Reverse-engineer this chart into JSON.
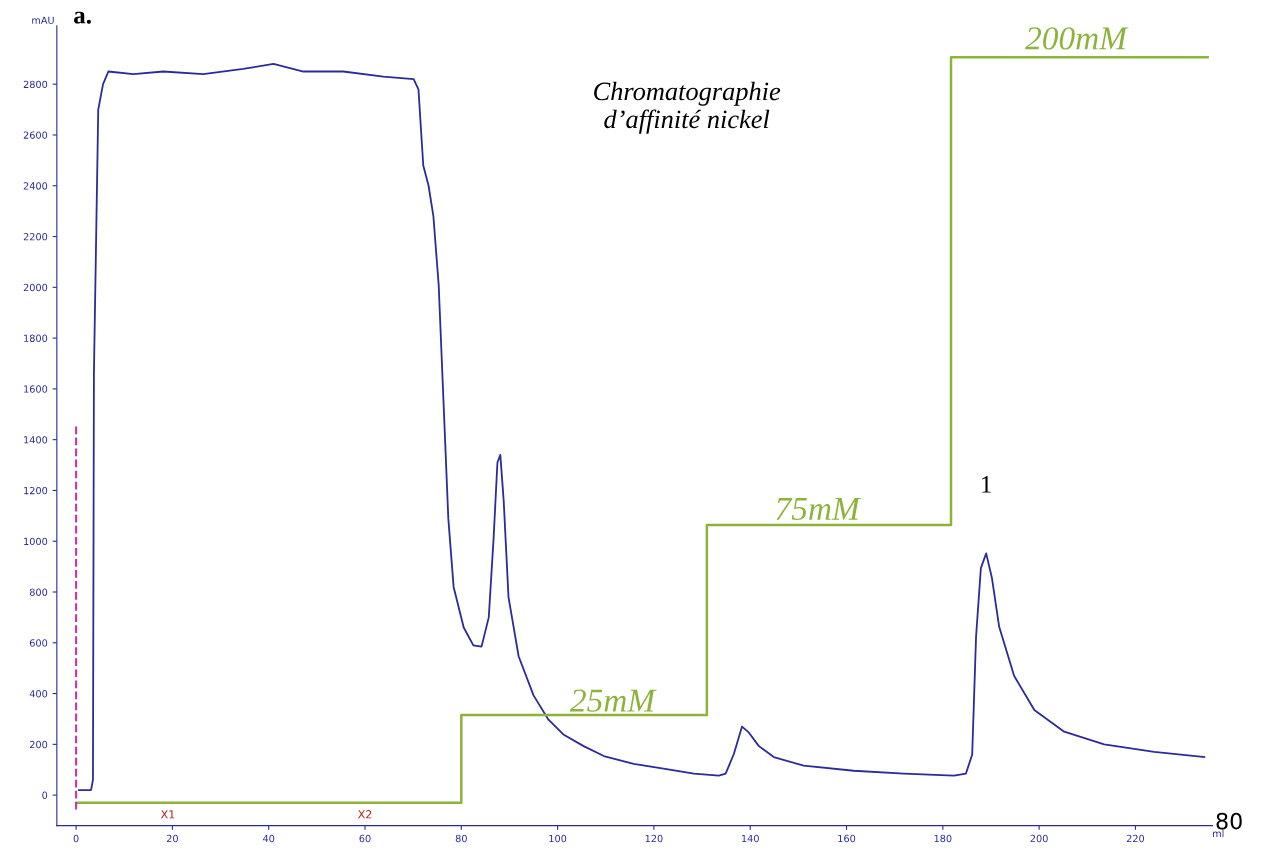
{
  "chart_data": {
    "type": "line",
    "title": "Chromatographie\nd’affinité nickel",
    "xlabel": "ml",
    "ylabel": "mAU",
    "annotations": [
      "a.",
      {
        "text": "1",
        "x": 189,
        "y": 952
      },
      "X1",
      "X2",
      "80",
      "25mM",
      "75mM",
      "200mM"
    ],
    "series": [
      {
        "color": "#2b2b9e",
        "x": [
          0.6,
          3.1,
          3.5,
          3.7,
          4.6,
          5.6,
          6.7,
          11.9,
          18.1,
          26.4,
          34.7,
          41,
          47.2,
          55.5,
          63.8,
          70.1,
          71.1,
          72.1,
          73.2,
          74.2,
          75.3,
          76.3,
          77.3,
          78.4,
          80.5,
          82.5,
          84.2,
          85.7,
          86.7,
          87.5,
          88.1,
          88.8,
          89.8,
          91.9,
          95,
          98.1,
          101.2,
          105.4,
          109.6,
          115.8,
          122,
          128.3,
          133.5,
          134.9,
          136.6,
          138.3,
          139.7,
          141.8,
          144.9,
          151.1,
          161.5,
          171.9,
          182.3,
          184.8,
          186.1,
          186.9,
          187.9,
          189,
          190.2,
          191.7,
          194.8,
          199,
          205.2,
          213.5,
          223.9,
          234.3
        ],
        "values": [
          20,
          20,
          60,
          1660,
          2700,
          2800,
          2850,
          2840,
          2850,
          2840,
          2860,
          2880,
          2850,
          2850,
          2830,
          2820,
          2780,
          2480,
          2400,
          2280,
          2010,
          1550,
          1090,
          820,
          660,
          590,
          585,
          700,
          1010,
          1310,
          1340,
          1160,
          780,
          547,
          393,
          297,
          239,
          193,
          154,
          123,
          104,
          85,
          77,
          85,
          162,
          270,
          247,
          193,
          150,
          116,
          96,
          85,
          77,
          85,
          160,
          624,
          894,
          952,
          855,
          663,
          470,
          335,
          250,
          200,
          170,
          150
        ]
      },
      {
        "type": "step",
        "color": "#8db33a",
        "x": [
          0,
          80,
          131,
          181.7,
          235
        ],
        "values": [
          -30,
          316,
          1064,
          2906,
          2906
        ]
      }
    ],
    "ref_lines": [
      {
        "axis": "x",
        "value": 0,
        "color": "#cc33aa",
        "line_style": "dashed"
      }
    ],
    "xlim": [
      -4,
      236
    ],
    "xticks": [
      0,
      20,
      40,
      60,
      80,
      100,
      120,
      140,
      160,
      180,
      200,
      220
    ],
    "ylim": [
      -120,
      3030
    ],
    "yticks": [
      0,
      200,
      400,
      600,
      800,
      1000,
      1200,
      1400,
      1600,
      1800,
      2000,
      2200,
      2400,
      2600,
      2800
    ],
    "grid": false,
    "legend": false,
    "marker": "none",
    "line_style": "solid"
  }
}
